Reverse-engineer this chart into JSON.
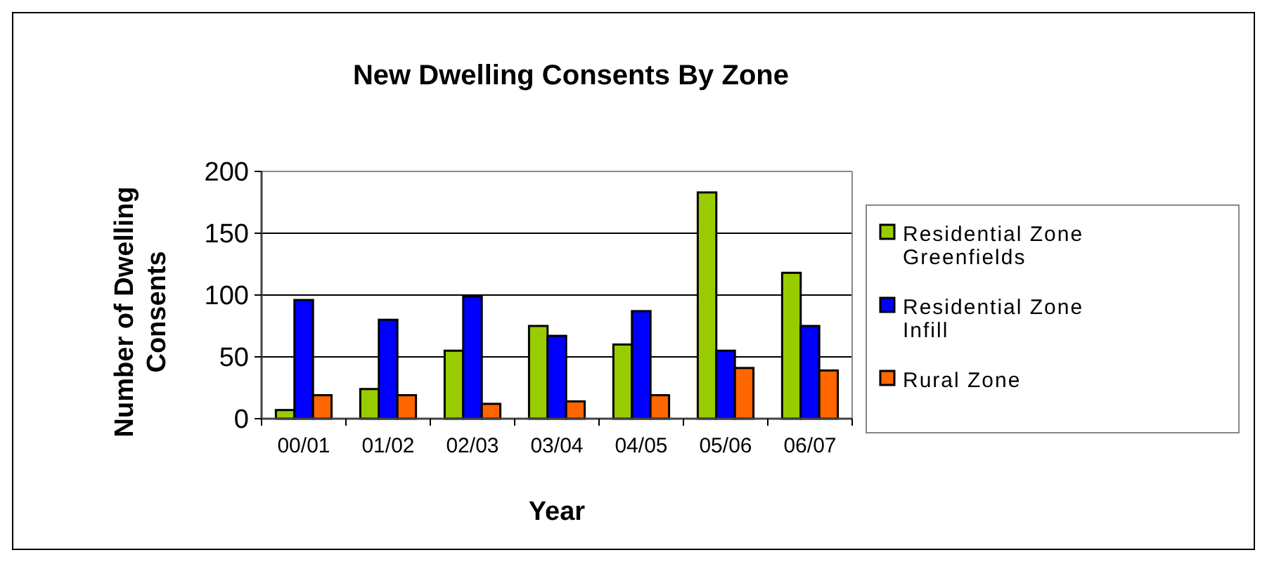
{
  "chart_data": {
    "type": "bar",
    "title": "New Dwelling Consents By Zone",
    "xlabel": "Year",
    "ylabel": "Number of Dwelling Consents",
    "categories": [
      "00/01",
      "01/02",
      "02/03",
      "03/04",
      "04/05",
      "05/06",
      "06/07"
    ],
    "series": [
      {
        "name": "Residential Zone Greenfields",
        "color": "#99cc00",
        "values": [
          7,
          24,
          55,
          75,
          60,
          183,
          118
        ]
      },
      {
        "name": "Residential Zone Infill",
        "color": "#0000ff",
        "values": [
          96,
          80,
          99,
          67,
          87,
          55,
          75
        ]
      },
      {
        "name": "Rural Zone",
        "color": "#ff6600",
        "values": [
          19,
          19,
          12,
          14,
          19,
          41,
          39
        ]
      }
    ],
    "ylim": [
      0,
      200
    ],
    "yticks": [
      0,
      50,
      100,
      150,
      200
    ],
    "grid": "y",
    "legend": "right"
  }
}
